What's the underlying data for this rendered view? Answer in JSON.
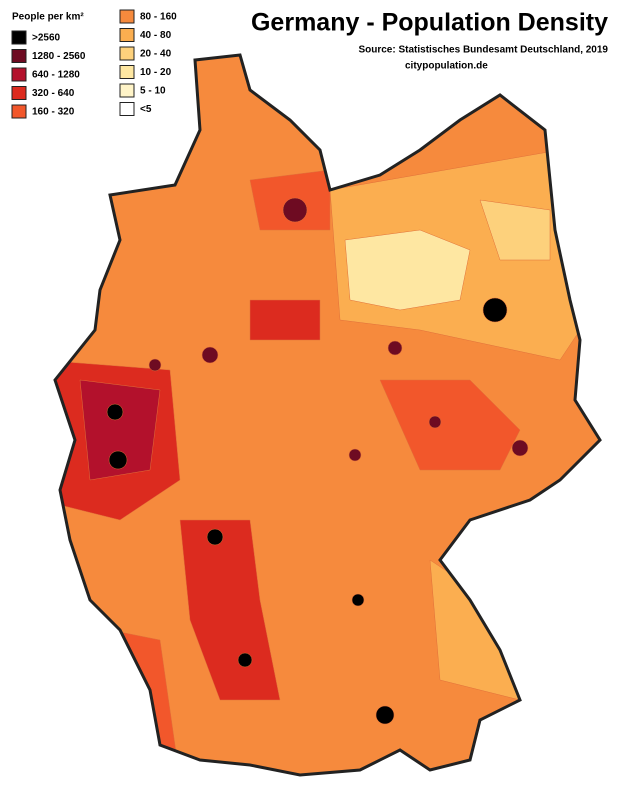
{
  "title": "Germany - Population Density",
  "source": "Source:  Statistisches Bundesamt Deutschland, 2019",
  "site": "citypopulation.de",
  "legend": {
    "title": "People per km²",
    "items": [
      {
        "label": ">2560",
        "color": "#000000"
      },
      {
        "label": "1280 - 2560",
        "color": "#6e0b22"
      },
      {
        "label": "640 - 1280",
        "color": "#b3112c"
      },
      {
        "label": "320 - 640",
        "color": "#dc2b1f"
      },
      {
        "label": "160 - 320",
        "color": "#f2572b"
      },
      {
        "label": "80 - 160",
        "color": "#f68a3d"
      },
      {
        "label": "40 - 80",
        "color": "#fbae50"
      },
      {
        "label": "20 - 40",
        "color": "#fdd17c"
      },
      {
        "label": "10 - 20",
        "color": "#fee7a2"
      },
      {
        "label": "5 - 10",
        "color": "#fff4c8"
      },
      {
        "label": "<5",
        "color": "#ffffff"
      }
    ]
  }
}
